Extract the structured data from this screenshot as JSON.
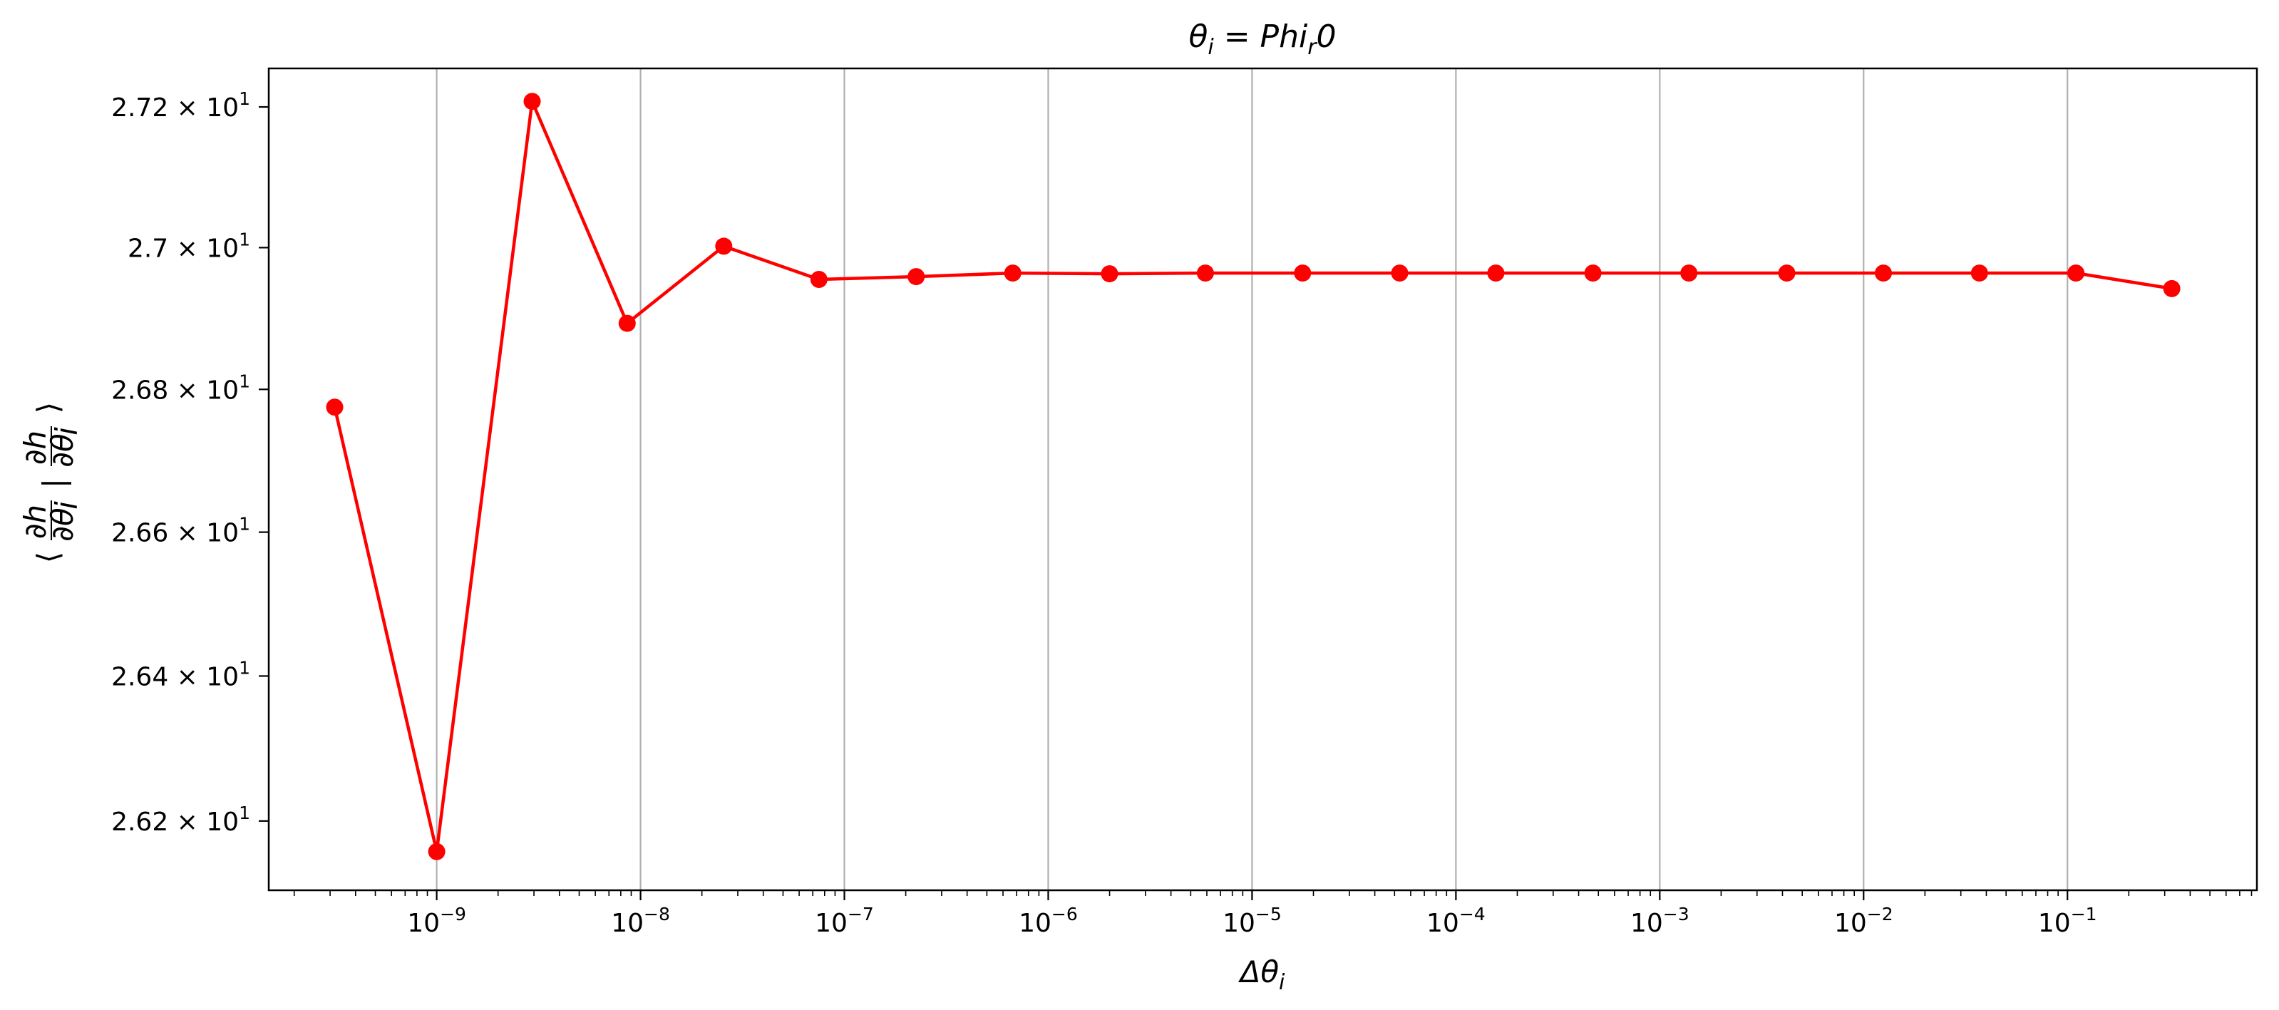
{
  "chart_data": {
    "type": "line",
    "title": {
      "base": "θ",
      "sub1": "i",
      "mid": " = Phi",
      "sub2": "r",
      "end": "0"
    },
    "xlabel": {
      "base": "Δθ",
      "sub": "i"
    },
    "ylabel": {
      "left": "⟨",
      "num": "∂h",
      "den": "∂θ",
      "den_sub": "i",
      "sep": "|",
      "right": "⟩"
    },
    "x_scale": "log",
    "y_scale": "log",
    "xlim": [
      1.5e-10,
      0.85
    ],
    "ylim": [
      26.105,
      27.255
    ],
    "grid": "vertical",
    "series_color": "#ff0000",
    "x_ticks": [
      {
        "value": 1e-09,
        "mantissa": "10",
        "exp": "−9"
      },
      {
        "value": 1e-08,
        "mantissa": "10",
        "exp": "−8"
      },
      {
        "value": 1e-07,
        "mantissa": "10",
        "exp": "−7"
      },
      {
        "value": 1e-06,
        "mantissa": "10",
        "exp": "−6"
      },
      {
        "value": 1e-05,
        "mantissa": "10",
        "exp": "−5"
      },
      {
        "value": 0.0001,
        "mantissa": "10",
        "exp": "−4"
      },
      {
        "value": 0.001,
        "mantissa": "10",
        "exp": "−3"
      },
      {
        "value": 0.01,
        "mantissa": "10",
        "exp": "−2"
      },
      {
        "value": 0.1,
        "mantissa": "10",
        "exp": "−1"
      }
    ],
    "y_ticks": [
      {
        "value": 26.2,
        "mantissa": "2.62",
        "times": "×",
        "base": "10",
        "exp": "1"
      },
      {
        "value": 26.4,
        "mantissa": "2.64",
        "times": "×",
        "base": "10",
        "exp": "1"
      },
      {
        "value": 26.6,
        "mantissa": "2.66",
        "times": "×",
        "base": "10",
        "exp": "1"
      },
      {
        "value": 26.8,
        "mantissa": "2.68",
        "times": "×",
        "base": "10",
        "exp": "1"
      },
      {
        "value": 27.0,
        "mantissa": "2.7",
        "times": "×",
        "base": "10",
        "exp": "1"
      },
      {
        "value": 27.2,
        "mantissa": "2.72",
        "times": "×",
        "base": "10",
        "exp": "1"
      }
    ],
    "series": [
      {
        "x": [
          3.16e-10,
          1e-09,
          2.94e-09,
          8.6e-09,
          2.56e-08,
          7.5e-08,
          2.25e-07,
          6.7e-07,
          2e-06,
          5.9e-06,
          1.77e-05,
          5.3e-05,
          0.000157,
          0.00047,
          0.00139,
          0.0042,
          0.0125,
          0.037,
          0.11,
          0.325
        ],
        "y": [
          26.775,
          26.158,
          27.208,
          26.893,
          27.002,
          26.955,
          26.959,
          26.964,
          26.963,
          26.964,
          26.964,
          26.964,
          26.964,
          26.964,
          26.964,
          26.964,
          26.964,
          26.964,
          26.964,
          26.942
        ]
      }
    ]
  }
}
